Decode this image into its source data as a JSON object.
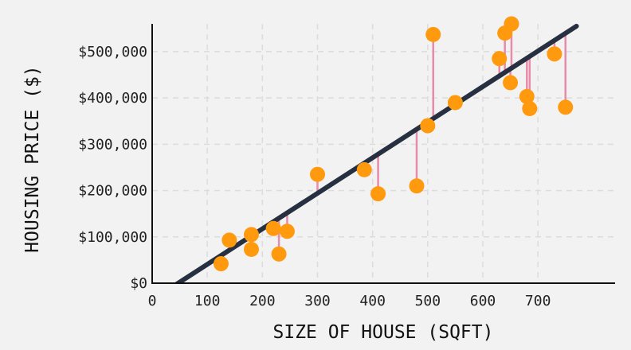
{
  "chart_data": {
    "type": "scatter",
    "xlabel": "SIZE OF HOUSE (SQFT)",
    "ylabel": "HOUSING PRICE ($)",
    "x_ticks": [
      0,
      100,
      200,
      300,
      400,
      500,
      600,
      700
    ],
    "x_tick_labels": [
      "0",
      "100",
      "200",
      "300",
      "400",
      "500",
      "600",
      "700"
    ],
    "y_ticks": [
      0,
      100000,
      200000,
      300000,
      400000,
      500000
    ],
    "y_tick_labels": [
      "$0",
      "$100,000",
      "$200,000",
      "$300,000",
      "$400,000",
      "$500,000"
    ],
    "xlim": [
      0,
      840
    ],
    "ylim": [
      0,
      560000
    ],
    "grid": true,
    "regression_line": {
      "x": [
        -5,
        770
      ],
      "y": [
        -40000,
        555000
      ]
    },
    "points": {
      "x": [
        125,
        140,
        180,
        180,
        220,
        230,
        245,
        300,
        385,
        410,
        480,
        500,
        510,
        550,
        630,
        640,
        650,
        652,
        680,
        685,
        730,
        750
      ],
      "y": [
        42000,
        93000,
        105000,
        73000,
        118000,
        63000,
        112000,
        235000,
        245000,
        193000,
        210000,
        340000,
        537000,
        390000,
        485000,
        540000,
        433000,
        560000,
        403000,
        377000,
        495000,
        380000
      ]
    },
    "colors": {
      "point": "#ff9a0f",
      "line": "#263040",
      "residual": "#e88aaa",
      "grid": "#dcdcdc",
      "axis": "#111111"
    }
  }
}
